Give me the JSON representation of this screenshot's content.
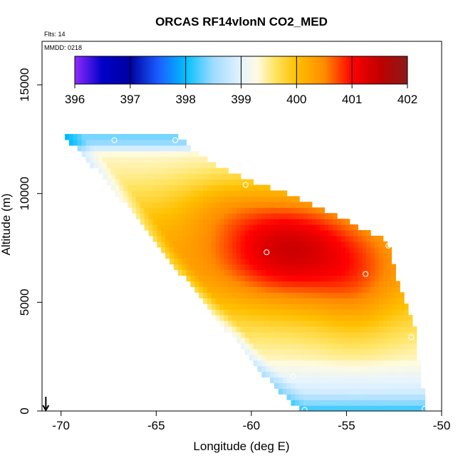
{
  "chart_data": {
    "type": "heatmap",
    "title": "ORCAS RF14vlonN CO2_MED",
    "xlabel": "Longitude (deg E)",
    "ylabel": "Altitude (m)",
    "xlim": [
      -71,
      -50
    ],
    "ylim": [
      0,
      17000
    ],
    "x_ticks": [
      -70,
      -65,
      -60,
      -55,
      -50
    ],
    "x_tick_labels": [
      "-70",
      "-65",
      "-60",
      "-55",
      "-50"
    ],
    "y_ticks": [
      0,
      5000,
      10000,
      15000
    ],
    "y_tick_labels": [
      "0",
      "5000",
      "10000",
      "15000"
    ],
    "annotation_flights": "Flts: 14",
    "annotation_date": "MMDD: 0218",
    "colorbar": {
      "range": [
        396,
        402
      ],
      "tick_values": [
        396,
        397,
        398,
        399,
        400,
        401,
        402
      ],
      "tick_labels": [
        "396",
        "397",
        "398",
        "399",
        "400",
        "401",
        "402"
      ],
      "stops": [
        {
          "v": 396.0,
          "c": "#8f2bff"
        },
        {
          "v": 396.5,
          "c": "#0000c8"
        },
        {
          "v": 397.0,
          "c": "#0000a0"
        },
        {
          "v": 397.5,
          "c": "#1a5cff"
        },
        {
          "v": 398.0,
          "c": "#00bfff"
        },
        {
          "v": 398.5,
          "c": "#9fdcff"
        },
        {
          "v": 399.0,
          "c": "#e4f3ff"
        },
        {
          "v": 399.3,
          "c": "#fffbe0"
        },
        {
          "v": 399.6,
          "c": "#ffe566"
        },
        {
          "v": 400.0,
          "c": "#ffc000"
        },
        {
          "v": 400.5,
          "c": "#ff8c00"
        },
        {
          "v": 401.0,
          "c": "#ff0000"
        },
        {
          "v": 401.5,
          "c": "#c00000"
        },
        {
          "v": 402.0,
          "c": "#8b1a1a"
        }
      ]
    },
    "profile": [
      [
        -69.8,
        12500
      ],
      [
        -69.5,
        12300
      ],
      [
        -69.0,
        11900
      ],
      [
        -68.5,
        11400
      ],
      [
        -68.0,
        10900
      ],
      [
        -67.5,
        10400
      ],
      [
        -67.0,
        9900
      ],
      [
        -66.5,
        9400
      ],
      [
        -66.0,
        8900
      ],
      [
        -65.5,
        8300
      ],
      [
        -65.0,
        7800
      ],
      [
        -64.5,
        7200
      ],
      [
        -64.0,
        6600
      ],
      [
        -63.5,
        6100
      ],
      [
        -63.0,
        5500
      ],
      [
        -62.5,
        5000
      ],
      [
        -62.0,
        4400
      ],
      [
        -61.5,
        3900
      ],
      [
        -61.0,
        3400
      ],
      [
        -60.5,
        2900
      ],
      [
        -60.0,
        2300
      ],
      [
        -59.5,
        1800
      ],
      [
        -59.0,
        1300
      ],
      [
        -58.5,
        900
      ],
      [
        -58.0,
        500
      ],
      [
        -57.5,
        150
      ],
      [
        -57.2,
        0
      ]
    ],
    "domain_top": [
      [
        -69.8,
        12600
      ],
      [
        -64.0,
        12600
      ],
      [
        -63.5,
        12200
      ],
      [
        -62.5,
        11500
      ],
      [
        -61.0,
        10800
      ],
      [
        -59.5,
        10300
      ],
      [
        -58.0,
        9800
      ],
      [
        -56.5,
        9200
      ],
      [
        -55.0,
        8600
      ],
      [
        -53.5,
        8000
      ],
      [
        -52.8,
        7600
      ],
      [
        -52.5,
        6500
      ],
      [
        -52.0,
        5000
      ],
      [
        -51.5,
        4000
      ],
      [
        -51.3,
        3000
      ],
      [
        -51.2,
        2000
      ],
      [
        -51.0,
        1000
      ],
      [
        -50.9,
        0
      ]
    ],
    "sample_points": [
      {
        "lon": -67.2,
        "alt": 12450
      },
      {
        "lon": -64.0,
        "alt": 12450
      },
      {
        "lon": -60.3,
        "alt": 10400
      },
      {
        "lon": -59.2,
        "alt": 7300
      },
      {
        "lon": -52.8,
        "alt": 7600
      },
      {
        "lon": -54.0,
        "alt": 6300
      },
      {
        "lon": -51.6,
        "alt": 3400
      },
      {
        "lon": -57.8,
        "alt": 1600
      },
      {
        "lon": -57.2,
        "alt": 50
      },
      {
        "lon": -50.9,
        "alt": 100
      }
    ],
    "arrow_longitude": -70.8,
    "field_peaks": [
      {
        "lon": -58.0,
        "alt": 7600,
        "delta": 1.2,
        "slon": 3.5,
        "salt": 2400
      },
      {
        "lon": -54.5,
        "alt": 5500,
        "delta": 0.4,
        "slon": 2.2,
        "salt": 2500
      },
      {
        "lon": -61.5,
        "alt": 9500,
        "delta": 0.3,
        "slon": 2.5,
        "salt": 1500
      }
    ],
    "field_base": 399.2,
    "field_bulk": {
      "amplitude": 1.0,
      "center_alt": 7000,
      "scale_alt": 3500
    }
  }
}
